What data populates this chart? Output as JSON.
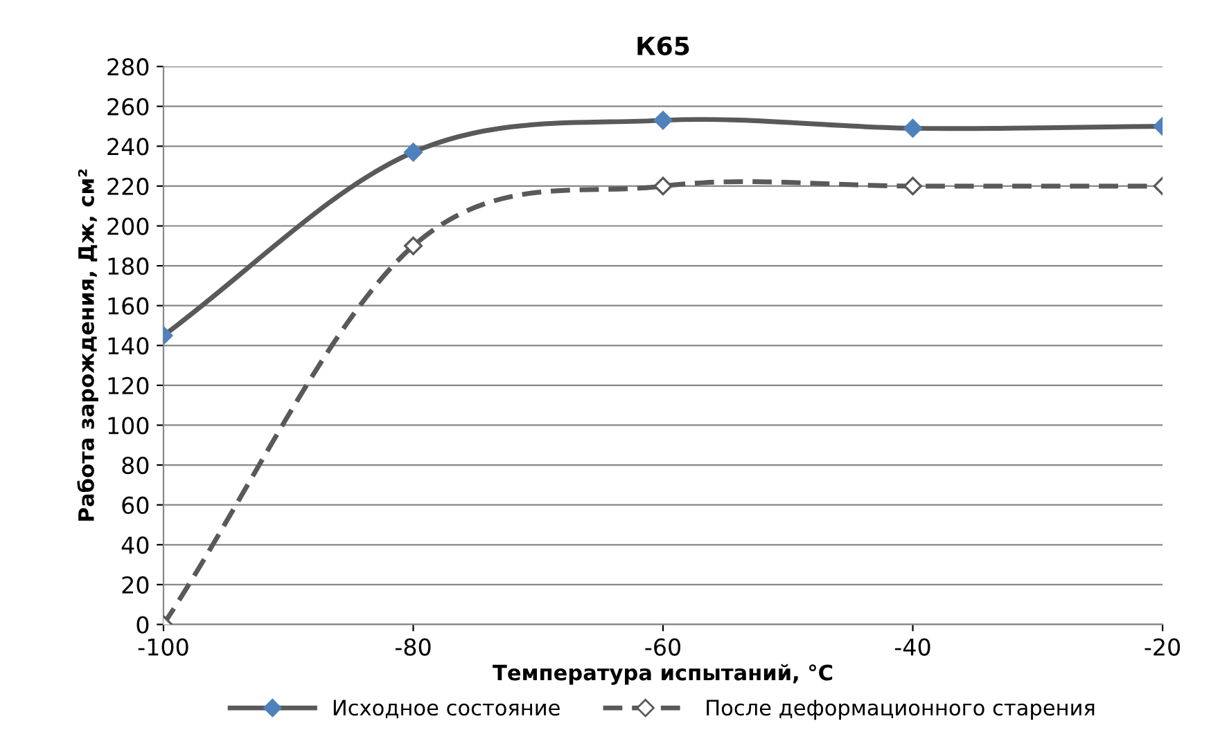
{
  "chart_data": {
    "type": "line",
    "title": "К65",
    "xlabel": "Температура испытаний, °С",
    "ylabel": "Работа зарождения, Дж, см²",
    "x": [
      -100,
      -80,
      -60,
      -40,
      -20
    ],
    "series": [
      {
        "name": "Исходное состояние",
        "color": "#595959",
        "line_style": "solid",
        "values": [
          145,
          237,
          253,
          249,
          250
        ]
      },
      {
        "name": "После деформационного старения",
        "color": "#595959",
        "line_style": "dashed",
        "values": [
          0,
          190,
          220,
          220,
          220
        ]
      }
    ],
    "marker": "diamond",
    "xlim": [
      -100,
      -20
    ],
    "xticks": [
      -100,
      -80,
      -60,
      -40,
      -20
    ],
    "ylim": [
      0,
      280
    ],
    "yticks": [
      0,
      20,
      40,
      60,
      80,
      100,
      120,
      140,
      160,
      180,
      200,
      220,
      240,
      260,
      280
    ],
    "grid": "y",
    "legend": "bottom"
  }
}
